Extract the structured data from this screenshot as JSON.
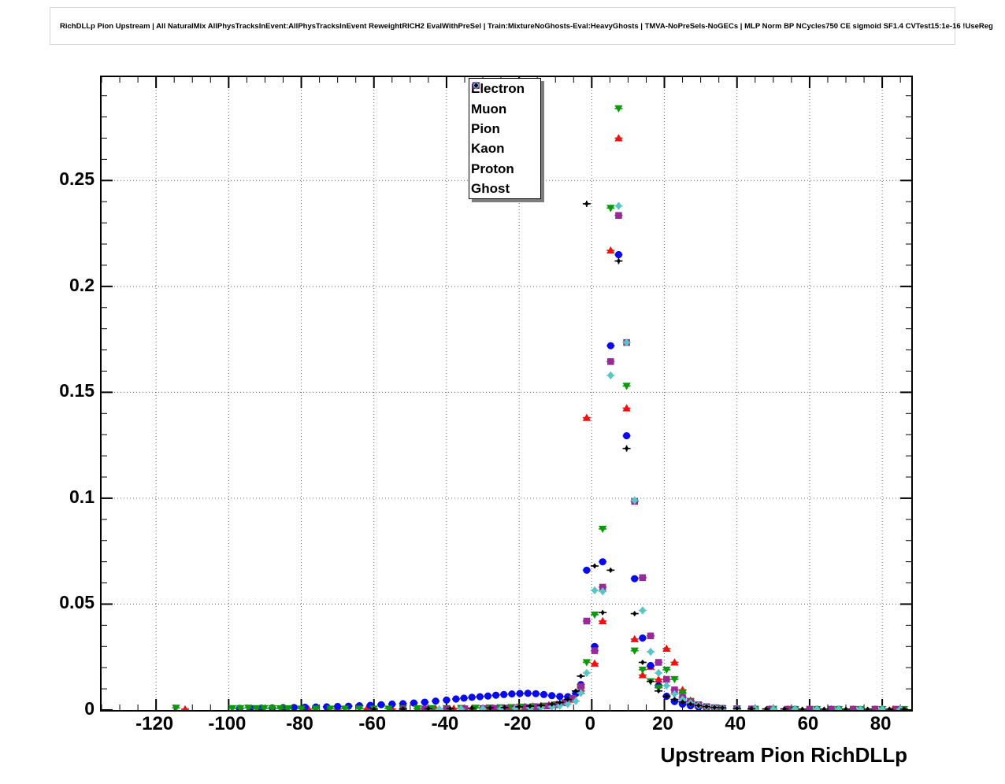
{
  "title": "RichDLLp Pion Upstream | All NaturalMix AllPhysTracksInEvent:AllPhysTracksInEvent ReweightRICH2 EvalWithPreSel | Train:MixtureNoGhosts-Eval:HeavyGhosts | TMVA-NoPreSels-NoGECs | MLP Norm BP NCycles750 CE sigmoid SF1.4 CVTest15:1e-16 !UseReg",
  "chart_data": {
    "type": "scatter",
    "title": "",
    "xlabel": "Upstream Pion RichDLLp",
    "ylabel": "",
    "xlim": [
      -135,
      88
    ],
    "ylim": [
      0,
      0.2988
    ],
    "grid": "dotted",
    "legend_position": "top-center",
    "x_ticks": [
      -120,
      -100,
      -80,
      -60,
      -40,
      -20,
      0,
      20,
      40,
      60,
      80
    ],
    "x_tick_labels": [
      "-120",
      "-100",
      "-80",
      "-60",
      "-40",
      "-20",
      "0",
      "20",
      "40",
      "60",
      "80"
    ],
    "y_ticks": [
      0,
      0.05,
      0.1,
      0.15,
      0.2,
      0.25
    ],
    "y_tick_labels": [
      "0",
      "0.05",
      "0.1",
      "0.15",
      "0.2",
      "0.25"
    ],
    "x_minor_step": 5,
    "y_minor_step": 0.01,
    "series": [
      {
        "name": "Electron",
        "marker": "triangle-up",
        "color": "#ee1111",
        "points": [
          [
            -112,
            0.0004
          ],
          [
            -85,
            0.0004
          ],
          [
            -78,
            0.0004
          ],
          [
            -70,
            0.0004
          ],
          [
            -62,
            0.0005
          ],
          [
            -55,
            0.0005
          ],
          [
            -48,
            0.0006
          ],
          [
            -43,
            0.0006
          ],
          [
            -38,
            0.0007
          ],
          [
            -33,
            0.0008
          ],
          [
            -29,
            0.0009
          ],
          [
            -26,
            0.001
          ],
          [
            -23,
            0.0011
          ],
          [
            -20.6,
            0.0013
          ],
          [
            -18.4,
            0.0015
          ],
          [
            -16.2,
            0.0017
          ],
          [
            -14,
            0.002
          ],
          [
            -11.8,
            0.0024
          ],
          [
            -9.6,
            0.0028
          ],
          [
            -7.4,
            0.0036
          ],
          [
            -5.2,
            0.005
          ],
          [
            -3,
            0.009
          ],
          [
            -1.4,
            0.138
          ],
          [
            0.8,
            0.022
          ],
          [
            3,
            0.042
          ],
          [
            5.2,
            0.217
          ],
          [
            7.4,
            0.27
          ],
          [
            9.6,
            0.1425
          ],
          [
            11.8,
            0.0335
          ],
          [
            14,
            0.0165
          ],
          [
            16.2,
            0.0205
          ],
          [
            18.4,
            0.0145
          ],
          [
            20.6,
            0.029
          ],
          [
            22.8,
            0.0225
          ],
          [
            25,
            0.0095
          ],
          [
            27.2,
            0.0045
          ],
          [
            29.4,
            0.0022
          ],
          [
            31.6,
            0.0012
          ],
          [
            33.8,
            0.0008
          ],
          [
            36,
            0.0006
          ],
          [
            40,
            0.0005
          ],
          [
            44,
            0.0004
          ],
          [
            49,
            0.0004
          ],
          [
            54,
            0.0004
          ],
          [
            60,
            0.0004
          ],
          [
            66,
            0.0004
          ],
          [
            72,
            0.0004
          ],
          [
            78,
            0.0004
          ],
          [
            83,
            0.0004
          ]
        ]
      },
      {
        "name": "Muon",
        "marker": "circle",
        "color": "#0a0aee",
        "points": [
          [
            -97,
            0.0008
          ],
          [
            -94,
            0.0008
          ],
          [
            -91,
            0.0009
          ],
          [
            -88,
            0.001
          ],
          [
            -85,
            0.0011
          ],
          [
            -82,
            0.0012
          ],
          [
            -79,
            0.0013
          ],
          [
            -76,
            0.0014
          ],
          [
            -73,
            0.0015
          ],
          [
            -70,
            0.0017
          ],
          [
            -67,
            0.0018
          ],
          [
            -64,
            0.002
          ],
          [
            -61,
            0.0022
          ],
          [
            -58,
            0.0025
          ],
          [
            -55,
            0.0028
          ],
          [
            -52,
            0.003
          ],
          [
            -49,
            0.0033
          ],
          [
            -46,
            0.0037
          ],
          [
            -43,
            0.0042
          ],
          [
            -40,
            0.0047
          ],
          [
            -37.4,
            0.0052
          ],
          [
            -35.2,
            0.0056
          ],
          [
            -33,
            0.006
          ],
          [
            -30.8,
            0.0063
          ],
          [
            -28.6,
            0.0066
          ],
          [
            -26.4,
            0.007
          ],
          [
            -24.2,
            0.0073
          ],
          [
            -22,
            0.0076
          ],
          [
            -19.8,
            0.0078
          ],
          [
            -17.6,
            0.0079
          ],
          [
            -15.4,
            0.0077
          ],
          [
            -13.2,
            0.0073
          ],
          [
            -11,
            0.0068
          ],
          [
            -8.8,
            0.0064
          ],
          [
            -6.6,
            0.0063
          ],
          [
            -4.4,
            0.0078
          ],
          [
            -3,
            0.012
          ],
          [
            -1.4,
            0.066
          ],
          [
            0.8,
            0.03
          ],
          [
            3,
            0.07
          ],
          [
            5.2,
            0.172
          ],
          [
            7.4,
            0.215
          ],
          [
            9.6,
            0.1295
          ],
          [
            11.8,
            0.062
          ],
          [
            14,
            0.034
          ],
          [
            16.2,
            0.021
          ],
          [
            18.4,
            0.0115
          ],
          [
            20.6,
            0.0065
          ],
          [
            22.8,
            0.004
          ],
          [
            25,
            0.0028
          ],
          [
            27.2,
            0.002
          ],
          [
            29.4,
            0.0015
          ],
          [
            31.6,
            0.0012
          ],
          [
            33.8,
            0.001
          ],
          [
            36,
            0.0008
          ],
          [
            40,
            0.0006
          ],
          [
            45,
            0.0005
          ],
          [
            50,
            0.0004
          ],
          [
            56,
            0.0004
          ],
          [
            62,
            0.0004
          ],
          [
            68,
            0.0004
          ]
        ]
      },
      {
        "name": "Pion",
        "marker": "triangle-down",
        "color": "#0c9a0c",
        "points": [
          [
            -114.5,
            0.001
          ],
          [
            -99,
            0.0008
          ],
          [
            -96.8,
            0.0008
          ],
          [
            -94.6,
            0.001
          ],
          [
            -92.4,
            0.0008
          ],
          [
            -90.2,
            0.0008
          ],
          [
            -88,
            0.0008
          ],
          [
            -85.8,
            0.0007
          ],
          [
            -83.6,
            0.0007
          ],
          [
            -80,
            0.0006
          ],
          [
            -76,
            0.0006
          ],
          [
            -72,
            0.0006
          ],
          [
            -68,
            0.0006
          ],
          [
            -64,
            0.0006
          ],
          [
            -60,
            0.0006
          ],
          [
            -56,
            0.0006
          ],
          [
            -52,
            0.0007
          ],
          [
            -48,
            0.0007
          ],
          [
            -44,
            0.0008
          ],
          [
            -40,
            0.0008
          ],
          [
            -36,
            0.0009
          ],
          [
            -32,
            0.001
          ],
          [
            -28,
            0.0011
          ],
          [
            -25,
            0.0012
          ],
          [
            -22,
            0.0013
          ],
          [
            -19,
            0.0015
          ],
          [
            -16,
            0.0017
          ],
          [
            -13,
            0.002
          ],
          [
            -10,
            0.0025
          ],
          [
            -7.4,
            0.0035
          ],
          [
            -5.2,
            0.0052
          ],
          [
            -3,
            0.0105
          ],
          [
            -1.4,
            0.0225
          ],
          [
            0.8,
            0.045
          ],
          [
            3,
            0.0855
          ],
          [
            5.2,
            0.237
          ],
          [
            7.4,
            0.284
          ],
          [
            9.6,
            0.153
          ],
          [
            11.8,
            0.028
          ],
          [
            14,
            0.019
          ],
          [
            16.2,
            0.0135
          ],
          [
            18.4,
            0.0105
          ],
          [
            20.6,
            0.019
          ],
          [
            22.8,
            0.0145
          ],
          [
            25,
            0.008
          ],
          [
            27.2,
            0.0042
          ],
          [
            29.4,
            0.0022
          ],
          [
            31.6,
            0.0013
          ],
          [
            33.8,
            0.0009
          ],
          [
            36,
            0.0007
          ],
          [
            40,
            0.0006
          ],
          [
            45,
            0.0005
          ],
          [
            50,
            0.0005
          ],
          [
            56,
            0.0004
          ],
          [
            62,
            0.0004
          ],
          [
            68,
            0.0004
          ],
          [
            74,
            0.0004
          ],
          [
            80,
            0.0004
          ],
          [
            86,
            0.0004
          ]
        ]
      },
      {
        "name": "Kaon",
        "marker": "square",
        "color": "#992999",
        "points": [
          [
            -52,
            0.0004
          ],
          [
            -46,
            0.0005
          ],
          [
            -40,
            0.0005
          ],
          [
            -35,
            0.0006
          ],
          [
            -30,
            0.0007
          ],
          [
            -27,
            0.0008
          ],
          [
            -24,
            0.0009
          ],
          [
            -21,
            0.001
          ],
          [
            -18,
            0.0012
          ],
          [
            -15,
            0.0015
          ],
          [
            -12,
            0.0019
          ],
          [
            -9.6,
            0.0025
          ],
          [
            -7.4,
            0.0035
          ],
          [
            -5.2,
            0.0055
          ],
          [
            -3,
            0.011
          ],
          [
            -1.4,
            0.042
          ],
          [
            0.8,
            0.028
          ],
          [
            3,
            0.058
          ],
          [
            5.2,
            0.1645
          ],
          [
            7.4,
            0.2335
          ],
          [
            9.6,
            0.1735
          ],
          [
            11.8,
            0.0985
          ],
          [
            14,
            0.0625
          ],
          [
            16.2,
            0.035
          ],
          [
            18.4,
            0.0225
          ],
          [
            20.6,
            0.0145
          ],
          [
            22.8,
            0.0095
          ],
          [
            25,
            0.006
          ],
          [
            27.2,
            0.004
          ],
          [
            29.4,
            0.0025
          ],
          [
            31.6,
            0.0016
          ],
          [
            33.8,
            0.0011
          ],
          [
            36,
            0.0008
          ],
          [
            40,
            0.0006
          ],
          [
            44,
            0.0005
          ],
          [
            49,
            0.0004
          ],
          [
            54,
            0.0004
          ],
          [
            60,
            0.0004
          ],
          [
            66,
            0.0004
          ],
          [
            72,
            0.0004
          ],
          [
            78,
            0.0004
          ],
          [
            84,
            0.0004
          ]
        ]
      },
      {
        "name": "Proton",
        "marker": "diamond",
        "color": "#56c6c6",
        "points": [
          [
            -42,
            0.0004
          ],
          [
            -36,
            0.0005
          ],
          [
            -30,
            0.0005
          ],
          [
            -25,
            0.0006
          ],
          [
            -21,
            0.0008
          ],
          [
            -17,
            0.001
          ],
          [
            -14,
            0.0012
          ],
          [
            -11,
            0.0015
          ],
          [
            -8.8,
            0.002
          ],
          [
            -6.6,
            0.0028
          ],
          [
            -4.4,
            0.0042
          ],
          [
            -3,
            0.008
          ],
          [
            -1.4,
            0.0175
          ],
          [
            0.8,
            0.0565
          ],
          [
            3,
            0.056
          ],
          [
            5.2,
            0.158
          ],
          [
            7.4,
            0.238
          ],
          [
            9.6,
            0.1735
          ],
          [
            11.8,
            0.099
          ],
          [
            14,
            0.047
          ],
          [
            16.2,
            0.0275
          ],
          [
            18.4,
            0.0175
          ],
          [
            20.6,
            0.0115
          ],
          [
            22.8,
            0.0075
          ],
          [
            25,
            0.005
          ],
          [
            27.2,
            0.0033
          ],
          [
            29.4,
            0.0022
          ],
          [
            31.6,
            0.0015
          ],
          [
            33.8,
            0.0011
          ],
          [
            36,
            0.0008
          ],
          [
            40,
            0.0006
          ],
          [
            45,
            0.0005
          ],
          [
            50,
            0.0004
          ],
          [
            56,
            0.0004
          ],
          [
            62,
            0.0004
          ],
          [
            68,
            0.0004
          ],
          [
            74,
            0.0004
          ],
          [
            80,
            0.0004
          ],
          [
            85,
            0.0004
          ]
        ]
      },
      {
        "name": "Ghost",
        "marker": "diamond-small",
        "color": "#000000",
        "points": [
          [
            -60,
            0.0004
          ],
          [
            -52,
            0.0005
          ],
          [
            -45,
            0.0006
          ],
          [
            -39,
            0.0007
          ],
          [
            -33,
            0.0009
          ],
          [
            -28,
            0.001
          ],
          [
            -24,
            0.0012
          ],
          [
            -20,
            0.0015
          ],
          [
            -17,
            0.0018
          ],
          [
            -14,
            0.0022
          ],
          [
            -11,
            0.0028
          ],
          [
            -8.8,
            0.0036
          ],
          [
            -6.6,
            0.005
          ],
          [
            -4.4,
            0.009
          ],
          [
            -3,
            0.016
          ],
          [
            -1.4,
            0.239
          ],
          [
            0.8,
            0.068
          ],
          [
            3,
            0.046
          ],
          [
            5.2,
            0.066
          ],
          [
            7.4,
            0.212
          ],
          [
            9.6,
            0.1235
          ],
          [
            11.8,
            0.0455
          ],
          [
            14,
            0.0225
          ],
          [
            16.2,
            0.0135
          ],
          [
            18.4,
            0.009
          ],
          [
            20.6,
            0.0065
          ],
          [
            22.8,
            0.005
          ],
          [
            25,
            0.0038
          ],
          [
            27.2,
            0.0028
          ],
          [
            29.4,
            0.0021
          ],
          [
            31.6,
            0.0016
          ],
          [
            33.8,
            0.0012
          ],
          [
            36,
            0.001
          ],
          [
            40,
            0.0008
          ],
          [
            44,
            0.0006
          ],
          [
            48,
            0.0005
          ],
          [
            53,
            0.0005
          ],
          [
            58,
            0.0004
          ],
          [
            64,
            0.0004
          ],
          [
            70,
            0.0004
          ],
          [
            76,
            0.0004
          ],
          [
            82,
            0.0004
          ],
          [
            86,
            0.0004
          ]
        ]
      }
    ]
  }
}
